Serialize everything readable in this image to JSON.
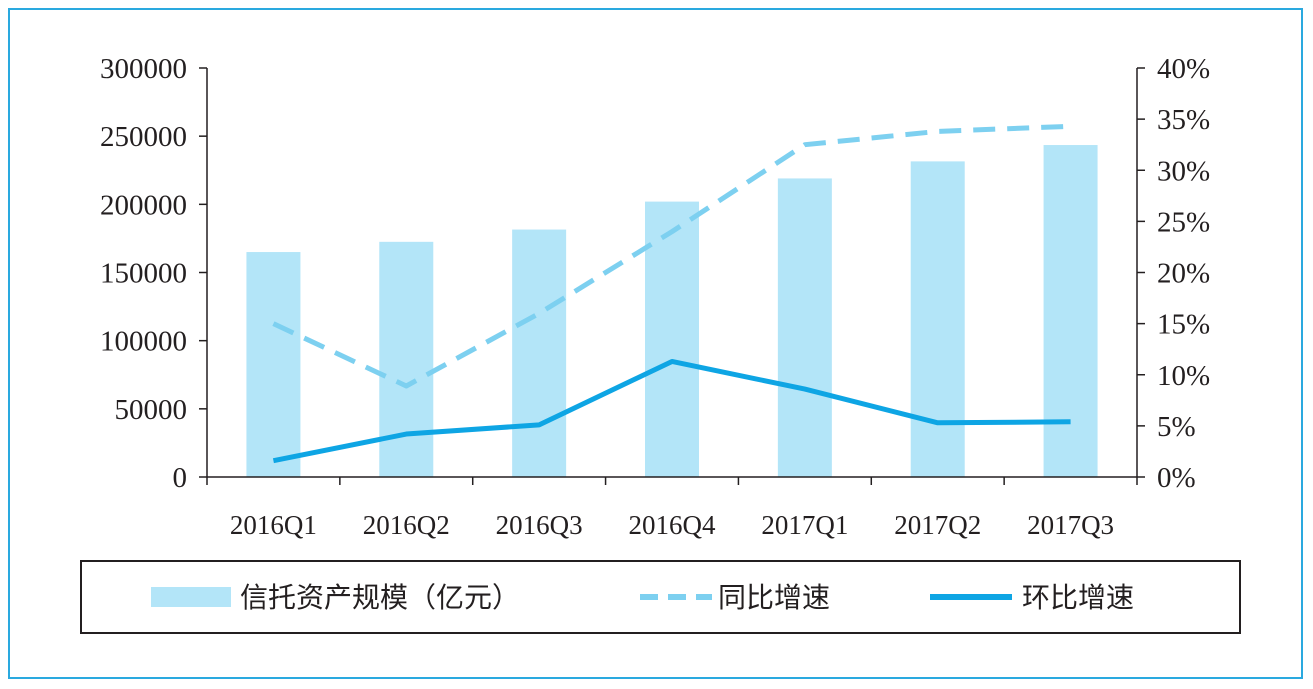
{
  "chart_data": {
    "type": "bar",
    "categories": [
      "2016Q1",
      "2016Q2",
      "2016Q3",
      "2016Q4",
      "2017Q1",
      "2017Q2",
      "2017Q3"
    ],
    "series": [
      {
        "name": "信托资产规模（亿元）",
        "type": "bar",
        "axis": "left",
        "color": "#b3e5f8",
        "values": [
          165000,
          172500,
          181500,
          202000,
          219000,
          231500,
          243500
        ]
      },
      {
        "name": "同比增速",
        "type": "line",
        "style": "dashed",
        "axis": "right",
        "color": "#7dd0f0",
        "values": [
          0.15,
          0.089,
          0.16,
          0.24,
          0.325,
          0.338,
          0.343
        ]
      },
      {
        "name": "环比增速",
        "type": "line",
        "style": "solid",
        "axis": "right",
        "color": "#0ea5e4",
        "values": [
          0.016,
          0.042,
          0.051,
          0.113,
          0.086,
          0.053,
          0.054
        ]
      }
    ],
    "y_left": {
      "min": 0,
      "max": 300000,
      "ticks": [
        "0",
        "50000",
        "100000",
        "150000",
        "200000",
        "250000",
        "300000"
      ]
    },
    "y_right": {
      "min": 0,
      "max": 0.4,
      "ticks": [
        "0%",
        "5%",
        "10%",
        "15%",
        "20%",
        "25%",
        "30%",
        "35%",
        "40%"
      ]
    },
    "legend": {
      "position": "bottom",
      "labels": [
        "信托资产规模（亿元）",
        "同比增速",
        "环比增速"
      ]
    },
    "grid": false
  }
}
